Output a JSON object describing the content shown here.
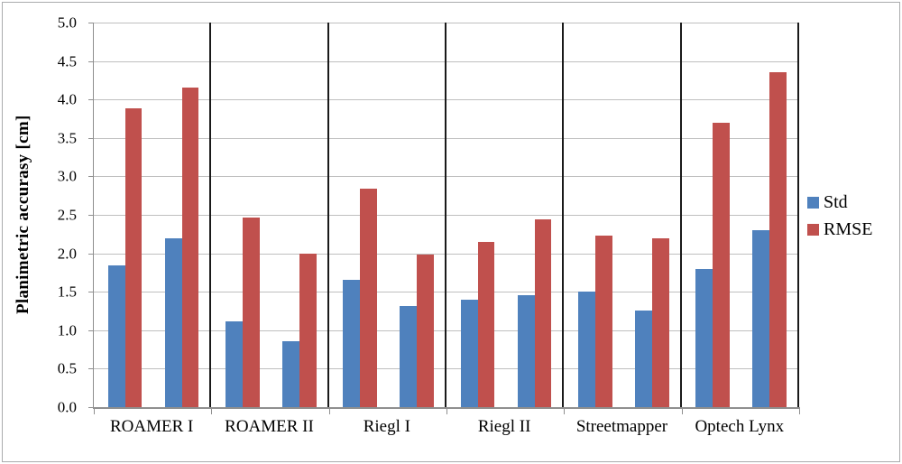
{
  "window": {
    "background": "#ffffff",
    "frame_border_color": "#aaabad"
  },
  "legend": {
    "position": "right-middle",
    "items": [
      {
        "label": "Std",
        "color": "#4F81BD"
      },
      {
        "label": "RMSE",
        "color": "#C0504D"
      }
    ]
  },
  "chart_data": {
    "type": "bar",
    "title": "",
    "xlabel": "",
    "ylabel": "Planimetric accurasy [cm]",
    "ylim": [
      0.0,
      5.0
    ],
    "ytick_step": 0.5,
    "ytick_decimals": 1,
    "grid": true,
    "legend_position": "right",
    "categories": [
      "ROAMER I",
      "ROAMER II",
      "Riegl I",
      "Riegl II",
      "Streetmapper",
      "Optech Lynx"
    ],
    "pairs_per_category": 2,
    "series": [
      {
        "name": "Std",
        "color": "#4F81BD",
        "values": [
          [
            1.84,
            2.2
          ],
          [
            1.12,
            0.86
          ],
          [
            1.66,
            1.32
          ],
          [
            1.4,
            1.46
          ],
          [
            1.5,
            1.26
          ],
          [
            1.8,
            2.3
          ]
        ]
      },
      {
        "name": "RMSE",
        "color": "#C0504D",
        "values": [
          [
            3.88,
            4.16
          ],
          [
            2.47,
            2.0
          ],
          [
            2.84,
            1.98
          ],
          [
            2.15,
            2.44
          ],
          [
            2.23,
            2.2
          ],
          [
            3.7,
            4.35
          ]
        ]
      }
    ],
    "colors": {
      "gridline": "#bfbfbf",
      "axis_line": "#8f8f8f",
      "category_separator": "#1a1a1a",
      "text": "#000000"
    }
  }
}
